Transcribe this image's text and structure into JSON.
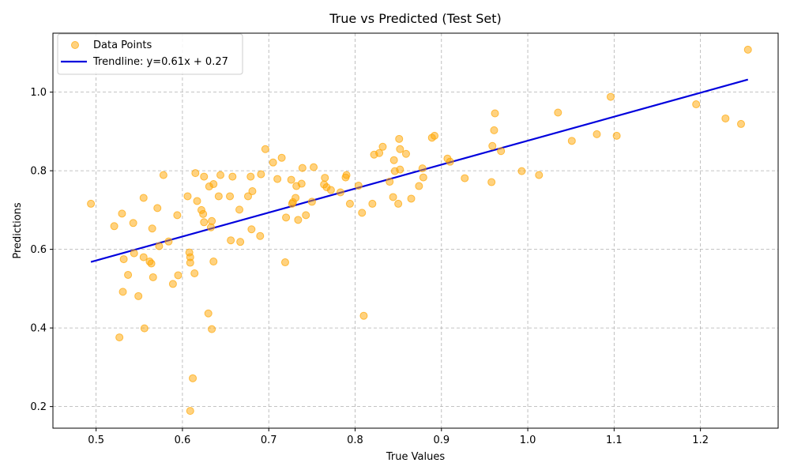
{
  "chart_data": {
    "type": "scatter",
    "title": "True vs Predicted (Test Set)",
    "xlabel": "True Values",
    "ylabel": "Predictions",
    "xlim": [
      0.45,
      1.29
    ],
    "ylim": [
      0.145,
      1.15
    ],
    "xticks": [
      0.5,
      0.6,
      0.7,
      0.8,
      0.9,
      1.0,
      1.1,
      1.2
    ],
    "xtick_labels": [
      "0.5",
      "0.6",
      "0.7",
      "0.8",
      "0.9",
      "1.0",
      "1.1",
      "1.2"
    ],
    "yticks": [
      0.2,
      0.4,
      0.6,
      0.8,
      1.0
    ],
    "ytick_labels": [
      "0.2",
      "0.4",
      "0.6",
      "0.8",
      "1.0"
    ],
    "grid": true,
    "legend_position": "top-left",
    "colors": {
      "points": "#ffa500",
      "trendline": "#0000dd"
    },
    "series": [
      {
        "name": "Data Points",
        "kind": "scatter",
        "points": [
          [
            0.494,
            0.716
          ],
          [
            0.521,
            0.659
          ],
          [
            0.527,
            0.376
          ],
          [
            0.53,
            0.691
          ],
          [
            0.531,
            0.492
          ],
          [
            0.532,
            0.575
          ],
          [
            0.537,
            0.535
          ],
          [
            0.543,
            0.667
          ],
          [
            0.544,
            0.59
          ],
          [
            0.549,
            0.481
          ],
          [
            0.555,
            0.731
          ],
          [
            0.555,
            0.58
          ],
          [
            0.556,
            0.399
          ],
          [
            0.562,
            0.569
          ],
          [
            0.564,
            0.564
          ],
          [
            0.565,
            0.653
          ],
          [
            0.566,
            0.529
          ],
          [
            0.571,
            0.705
          ],
          [
            0.573,
            0.608
          ],
          [
            0.578,
            0.789
          ],
          [
            0.584,
            0.62
          ],
          [
            0.589,
            0.512
          ],
          [
            0.594,
            0.687
          ],
          [
            0.595,
            0.534
          ],
          [
            0.606,
            0.735
          ],
          [
            0.608,
            0.592
          ],
          [
            0.609,
            0.58
          ],
          [
            0.609,
            0.566
          ],
          [
            0.609,
            0.189
          ],
          [
            0.612,
            0.272
          ],
          [
            0.614,
            0.539
          ],
          [
            0.615,
            0.794
          ],
          [
            0.617,
            0.723
          ],
          [
            0.622,
            0.7
          ],
          [
            0.624,
            0.69
          ],
          [
            0.625,
            0.785
          ],
          [
            0.625,
            0.669
          ],
          [
            0.63,
            0.437
          ],
          [
            0.631,
            0.76
          ],
          [
            0.633,
            0.656
          ],
          [
            0.634,
            0.672
          ],
          [
            0.634,
            0.397
          ],
          [
            0.636,
            0.766
          ],
          [
            0.636,
            0.569
          ],
          [
            0.642,
            0.735
          ],
          [
            0.644,
            0.789
          ],
          [
            0.655,
            0.735
          ],
          [
            0.656,
            0.623
          ],
          [
            0.658,
            0.785
          ],
          [
            0.666,
            0.701
          ],
          [
            0.667,
            0.619
          ],
          [
            0.676,
            0.735
          ],
          [
            0.679,
            0.785
          ],
          [
            0.68,
            0.651
          ],
          [
            0.681,
            0.748
          ],
          [
            0.69,
            0.634
          ],
          [
            0.691,
            0.791
          ],
          [
            0.696,
            0.855
          ],
          [
            0.705,
            0.821
          ],
          [
            0.71,
            0.779
          ],
          [
            0.715,
            0.833
          ],
          [
            0.719,
            0.567
          ],
          [
            0.72,
            0.681
          ],
          [
            0.726,
            0.777
          ],
          [
            0.727,
            0.716
          ],
          [
            0.728,
            0.72
          ],
          [
            0.731,
            0.731
          ],
          [
            0.732,
            0.761
          ],
          [
            0.734,
            0.675
          ],
          [
            0.738,
            0.767
          ],
          [
            0.739,
            0.807
          ],
          [
            0.743,
            0.687
          ],
          [
            0.75,
            0.721
          ],
          [
            0.752,
            0.809
          ],
          [
            0.764,
            0.765
          ],
          [
            0.765,
            0.782
          ],
          [
            0.767,
            0.758
          ],
          [
            0.772,
            0.751
          ],
          [
            0.783,
            0.745
          ],
          [
            0.789,
            0.783
          ],
          [
            0.79,
            0.789
          ],
          [
            0.794,
            0.716
          ],
          [
            0.804,
            0.762
          ],
          [
            0.808,
            0.693
          ],
          [
            0.81,
            0.431
          ],
          [
            0.82,
            0.716
          ],
          [
            0.822,
            0.841
          ],
          [
            0.828,
            0.845
          ],
          [
            0.832,
            0.861
          ],
          [
            0.84,
            0.772
          ],
          [
            0.844,
            0.733
          ],
          [
            0.845,
            0.827
          ],
          [
            0.846,
            0.799
          ],
          [
            0.85,
            0.716
          ],
          [
            0.851,
            0.881
          ],
          [
            0.852,
            0.803
          ],
          [
            0.852,
            0.855
          ],
          [
            0.859,
            0.843
          ],
          [
            0.865,
            0.729
          ],
          [
            0.874,
            0.761
          ],
          [
            0.878,
            0.806
          ],
          [
            0.879,
            0.783
          ],
          [
            0.889,
            0.884
          ],
          [
            0.892,
            0.889
          ],
          [
            0.907,
            0.831
          ],
          [
            0.91,
            0.823
          ],
          [
            0.927,
            0.781
          ],
          [
            0.958,
            0.771
          ],
          [
            0.959,
            0.863
          ],
          [
            0.961,
            0.903
          ],
          [
            0.962,
            0.946
          ],
          [
            0.969,
            0.85
          ],
          [
            0.993,
            0.799
          ],
          [
            1.013,
            0.789
          ],
          [
            1.035,
            0.948
          ],
          [
            1.051,
            0.876
          ],
          [
            1.08,
            0.893
          ],
          [
            1.096,
            0.988
          ],
          [
            1.103,
            0.889
          ],
          [
            1.195,
            0.969
          ],
          [
            1.229,
            0.933
          ],
          [
            1.247,
            0.919
          ],
          [
            1.255,
            1.108
          ]
        ]
      },
      {
        "name": "Trendline: y=0.61x + 0.27",
        "kind": "line",
        "x": [
          0.494,
          1.255
        ],
        "y": [
          0.568,
          1.032
        ]
      }
    ]
  }
}
